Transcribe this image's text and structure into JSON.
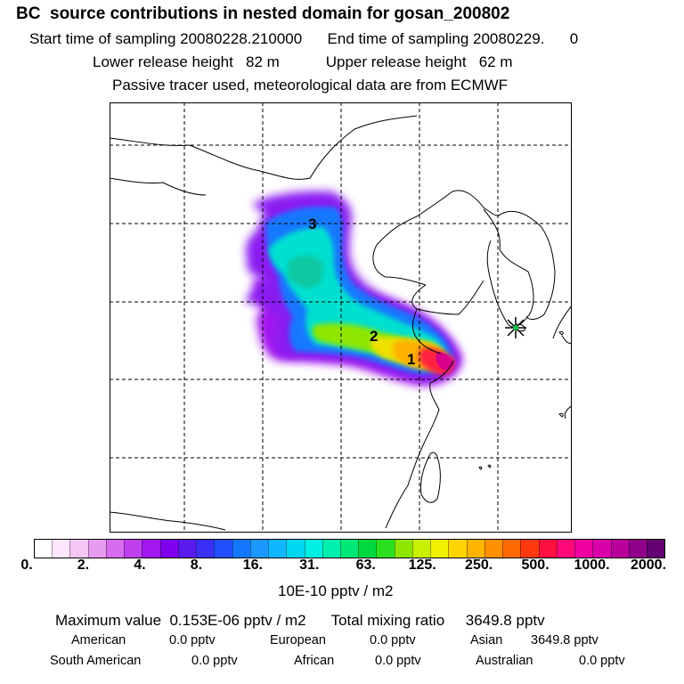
{
  "header": {
    "title": "BC  source contributions in nested domain for gosan_200802",
    "line1": "Start time of sampling 20080228.210000      End time of sampling 20080229.      0",
    "line2": "Lower release height   82 m           Upper release height   62 m",
    "line3": "Passive tracer used, meteorological data are from ECMWF"
  },
  "map": {
    "labels": [
      "1",
      "2",
      "3"
    ],
    "receptor_marker": "asterisk-star-icon"
  },
  "colorbar": {
    "ticks": [
      "0.",
      "2.",
      "4.",
      "8.",
      "16.",
      "31.",
      "63.",
      "125.",
      "250.",
      "500.",
      "1000.",
      "2000."
    ],
    "colors": [
      "#ffffff",
      "#fbe6fb",
      "#f3c6f5",
      "#e79cf1",
      "#d76cee",
      "#c040ee",
      "#a318ee",
      "#8000ee",
      "#5a1aee",
      "#3a30f5",
      "#2050ff",
      "#1478ff",
      "#1a98ff",
      "#10b6ff",
      "#00d6f0",
      "#00f0e4",
      "#00f0b0",
      "#00e878",
      "#00d840",
      "#2ce020",
      "#8ee600",
      "#c8f000",
      "#f0f000",
      "#ffd400",
      "#ffb400",
      "#ff9000",
      "#ff6a00",
      "#ff3a10",
      "#ff1040",
      "#ff0a78",
      "#f000a0",
      "#d800a8",
      "#b8009a",
      "#90008a",
      "#640070"
    ],
    "units": "10E-10 pptv / m2"
  },
  "summary": {
    "max_line": "Maximum value  0.153E-06 pptv / m2      Total mixing ratio     3649.8 pptv",
    "row1": [
      {
        "label": "American",
        "value": "0.0 pptv"
      },
      {
        "label": "European",
        "value": "0.0 pptv"
      },
      {
        "label": "Asian",
        "value": "3649.8 pptv"
      }
    ],
    "row2": [
      {
        "label": "South American",
        "value": "0.0 pptv"
      },
      {
        "label": "African",
        "value": "0.0 pptv"
      },
      {
        "label": "Australian",
        "value": "0.0 pptv"
      }
    ]
  }
}
